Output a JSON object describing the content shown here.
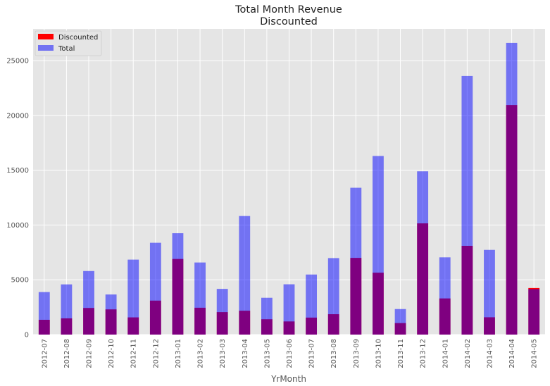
{
  "chart_data": {
    "type": "bar",
    "title": [
      "Total Month Revenue",
      "Discounted"
    ],
    "xlabel": "YrMonth",
    "ylabel": "",
    "ylim": [
      0,
      27900
    ],
    "yticks": [
      0,
      5000,
      10000,
      15000,
      20000,
      25000
    ],
    "grid": true,
    "legend_position": "top-left",
    "categories": [
      "2012-07",
      "2012-08",
      "2012-09",
      "2012-10",
      "2012-11",
      "2012-12",
      "2013-01",
      "2013-02",
      "2013-03",
      "2013-04",
      "2013-05",
      "2013-06",
      "2013-07",
      "2013-08",
      "2013-09",
      "2013-10",
      "2013-11",
      "2013-12",
      "2014-01",
      "2014-02",
      "2014-03",
      "2014-04",
      "2014-05"
    ],
    "series": [
      {
        "name": "Discounted",
        "color": "#ff0000",
        "values": [
          1350,
          1480,
          2430,
          2300,
          1570,
          3100,
          6900,
          2450,
          2050,
          2180,
          1400,
          1200,
          1550,
          1860,
          7000,
          5650,
          1050,
          10150,
          3300,
          8100,
          1580,
          20950,
          4250
        ]
      },
      {
        "name": "Total",
        "color": "#0000ff",
        "opacity": 0.5,
        "values": [
          3880,
          4580,
          5800,
          3660,
          6840,
          8380,
          9250,
          6580,
          4170,
          10820,
          3360,
          4590,
          5480,
          6980,
          13400,
          16300,
          2330,
          14900,
          7050,
          23600,
          7730,
          26620,
          4150
        ]
      }
    ]
  }
}
